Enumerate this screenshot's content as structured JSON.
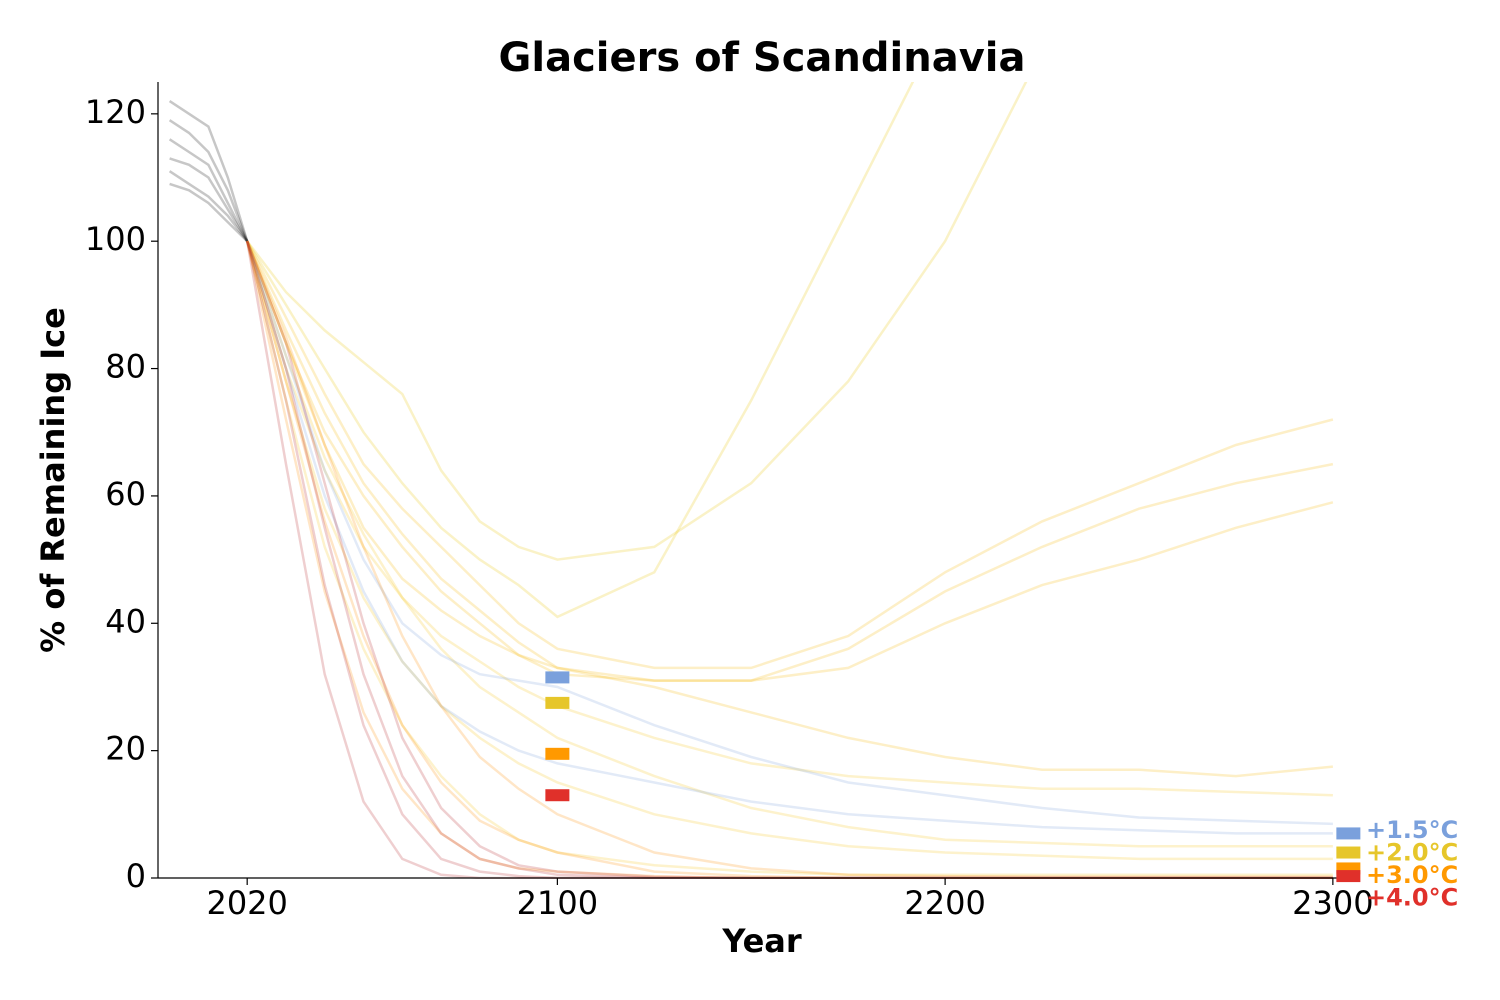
{
  "chart_data": {
    "type": "line",
    "title": "Glaciers of Scandinavia",
    "xlabel": "Year",
    "ylabel": "% of Remaining Ice",
    "x": [
      2000,
      2005,
      2010,
      2015,
      2020,
      2030,
      2040,
      2050,
      2060,
      2070,
      2080,
      2090,
      2100,
      2125,
      2150,
      2175,
      2200,
      2225,
      2250,
      2275,
      2300
    ],
    "xlim": [
      1997,
      2307
    ],
    "ylim": [
      0,
      125
    ],
    "xticks": [
      2020,
      2100,
      2200,
      2300
    ],
    "yticks": [
      0,
      20,
      40,
      60,
      80,
      100,
      120
    ],
    "line_alpha": 0.22,
    "series": [
      {
        "color": "#000000",
        "values": [
          122,
          120,
          118,
          110,
          100,
          null,
          null,
          null,
          null,
          null,
          null,
          null,
          null,
          null,
          null,
          null,
          null,
          null,
          null,
          null,
          null
        ]
      },
      {
        "color": "#000000",
        "values": [
          119,
          117,
          114,
          108,
          100,
          null,
          null,
          null,
          null,
          null,
          null,
          null,
          null,
          null,
          null,
          null,
          null,
          null,
          null,
          null,
          null
        ]
      },
      {
        "color": "#000000",
        "values": [
          116,
          114,
          112,
          106,
          100,
          null,
          null,
          null,
          null,
          null,
          null,
          null,
          null,
          null,
          null,
          null,
          null,
          null,
          null,
          null,
          null
        ]
      },
      {
        "color": "#000000",
        "values": [
          113,
          112,
          110,
          105,
          100,
          null,
          null,
          null,
          null,
          null,
          null,
          null,
          null,
          null,
          null,
          null,
          null,
          null,
          null,
          null,
          null
        ]
      },
      {
        "color": "#000000",
        "values": [
          111,
          109,
          107,
          104,
          100,
          null,
          null,
          null,
          null,
          null,
          null,
          null,
          null,
          null,
          null,
          null,
          null,
          null,
          null,
          null,
          null
        ]
      },
      {
        "color": "#000000",
        "values": [
          109,
          108,
          106,
          103,
          100,
          null,
          null,
          null,
          null,
          null,
          null,
          null,
          null,
          null,
          null,
          null,
          null,
          null,
          null,
          null,
          null
        ]
      },
      {
        "color": "#e8c400",
        "values": [
          null,
          null,
          null,
          null,
          100,
          90,
          80,
          70,
          62,
          55,
          50,
          46,
          41,
          48,
          75,
          105,
          135,
          null,
          null,
          null,
          null
        ]
      },
      {
        "color": "#e8c400",
        "values": [
          null,
          null,
          null,
          null,
          100,
          92,
          86,
          81,
          76,
          64,
          56,
          52,
          50,
          52,
          62,
          78,
          100,
          130,
          null,
          null,
          null
        ]
      },
      {
        "color": "#f5b800",
        "values": [
          null,
          null,
          null,
          null,
          100,
          88,
          76,
          65,
          58,
          52,
          46,
          40,
          36,
          33,
          33,
          38,
          48,
          56,
          62,
          68,
          72
        ]
      },
      {
        "color": "#f5b800",
        "values": [
          null,
          null,
          null,
          null,
          100,
          86,
          73,
          62,
          54,
          47,
          42,
          37,
          33,
          31,
          31,
          36,
          45,
          52,
          58,
          62,
          65
        ]
      },
      {
        "color": "#f5b800",
        "values": [
          null,
          null,
          null,
          null,
          100,
          84,
          70,
          60,
          52,
          45,
          40,
          35,
          32,
          31,
          31,
          33,
          40,
          46,
          50,
          55,
          59
        ]
      },
      {
        "color": "#f5b800",
        "values": [
          null,
          null,
          null,
          null,
          100,
          84,
          68,
          55,
          47,
          42,
          38,
          35,
          33,
          30,
          26,
          22,
          19,
          17,
          17,
          16,
          17.5
        ]
      },
      {
        "color": "#f5c518",
        "values": [
          null,
          null,
          null,
          null,
          100,
          80,
          64,
          52,
          44,
          38,
          34,
          30,
          27,
          22,
          18,
          16,
          15,
          14,
          14,
          13.5,
          13
        ]
      },
      {
        "color": "#f5c518",
        "values": [
          null,
          null,
          null,
          null,
          100,
          78,
          58,
          44,
          34,
          27,
          22,
          18,
          15,
          10,
          7,
          5,
          4,
          3.5,
          3,
          3,
          3
        ]
      },
      {
        "color": "#f5c518",
        "values": [
          null,
          null,
          null,
          null,
          100,
          75,
          52,
          36,
          24,
          16,
          10,
          6,
          4,
          2,
          1,
          0.5,
          0.5,
          0.5,
          0.5,
          0.5,
          0.5
        ]
      },
      {
        "color": "#f5c518",
        "values": [
          null,
          null,
          null,
          null,
          100,
          82,
          66,
          54,
          44,
          36,
          30,
          26,
          22,
          16,
          11,
          8,
          6,
          5.5,
          5,
          5,
          5
        ]
      },
      {
        "color": "#7aa0dc",
        "values": [
          null,
          null,
          null,
          null,
          100,
          82,
          64,
          50,
          40,
          35,
          32,
          31,
          30,
          24,
          19,
          15,
          13,
          11,
          9.5,
          9,
          8.5
        ]
      },
      {
        "color": "#7aa0dc",
        "values": [
          null,
          null,
          null,
          null,
          100,
          80,
          60,
          45,
          34,
          27,
          23,
          20,
          18,
          15,
          12,
          10,
          9,
          8,
          7.5,
          7,
          7
        ]
      },
      {
        "color": "#ff8c00",
        "values": [
          null,
          null,
          null,
          null,
          100,
          72,
          45,
          26,
          14,
          7,
          3,
          1.5,
          1,
          0.3,
          0,
          0,
          0,
          0,
          0,
          0,
          0
        ]
      },
      {
        "color": "#ff8c00",
        "values": [
          null,
          null,
          null,
          null,
          100,
          78,
          56,
          38,
          24,
          15,
          9,
          6,
          4,
          1,
          0.3,
          0,
          0,
          0,
          0,
          0,
          0
        ]
      },
      {
        "color": "#ff8c00",
        "values": [
          null,
          null,
          null,
          null,
          100,
          85,
          68,
          52,
          38,
          27,
          19,
          14,
          10,
          4,
          1.5,
          0.5,
          0.3,
          0.2,
          0.2,
          0.2,
          0.2
        ]
      },
      {
        "color": "#b5252a",
        "values": [
          null,
          null,
          null,
          null,
          100,
          65,
          32,
          12,
          3,
          0.5,
          0,
          0,
          0,
          0,
          0,
          0,
          0,
          0,
          0,
          0,
          0
        ]
      },
      {
        "color": "#b5252a",
        "values": [
          null,
          null,
          null,
          null,
          100,
          75,
          46,
          24,
          10,
          3,
          1,
          0.3,
          0,
          0,
          0,
          0,
          0,
          0,
          0,
          0,
          0
        ]
      },
      {
        "color": "#b5252a",
        "values": [
          null,
          null,
          null,
          null,
          100,
          80,
          55,
          32,
          16,
          7,
          3,
          1.5,
          0.5,
          0,
          0,
          0,
          0,
          0,
          0,
          0,
          0
        ]
      },
      {
        "color": "#b5252a",
        "values": [
          null,
          null,
          null,
          null,
          100,
          84,
          62,
          40,
          22,
          11,
          5,
          2,
          1,
          0.2,
          0,
          0,
          0,
          0,
          0,
          0,
          0
        ]
      }
    ],
    "median_x": [
      2100,
      2304
    ],
    "medians": [
      {
        "name": "+1.5°C",
        "color": "#7aa0dc",
        "values": [
          31.5,
          7
        ]
      },
      {
        "name": "+2.0°C",
        "color": "#e6c62a",
        "values": [
          27.5,
          4
        ]
      },
      {
        "name": "+3.0°C",
        "color": "#ff9900",
        "values": [
          19.5,
          1.5
        ]
      },
      {
        "name": "+4.0°C",
        "color": "#e0302a",
        "values": [
          13,
          0.3
        ]
      }
    ]
  }
}
